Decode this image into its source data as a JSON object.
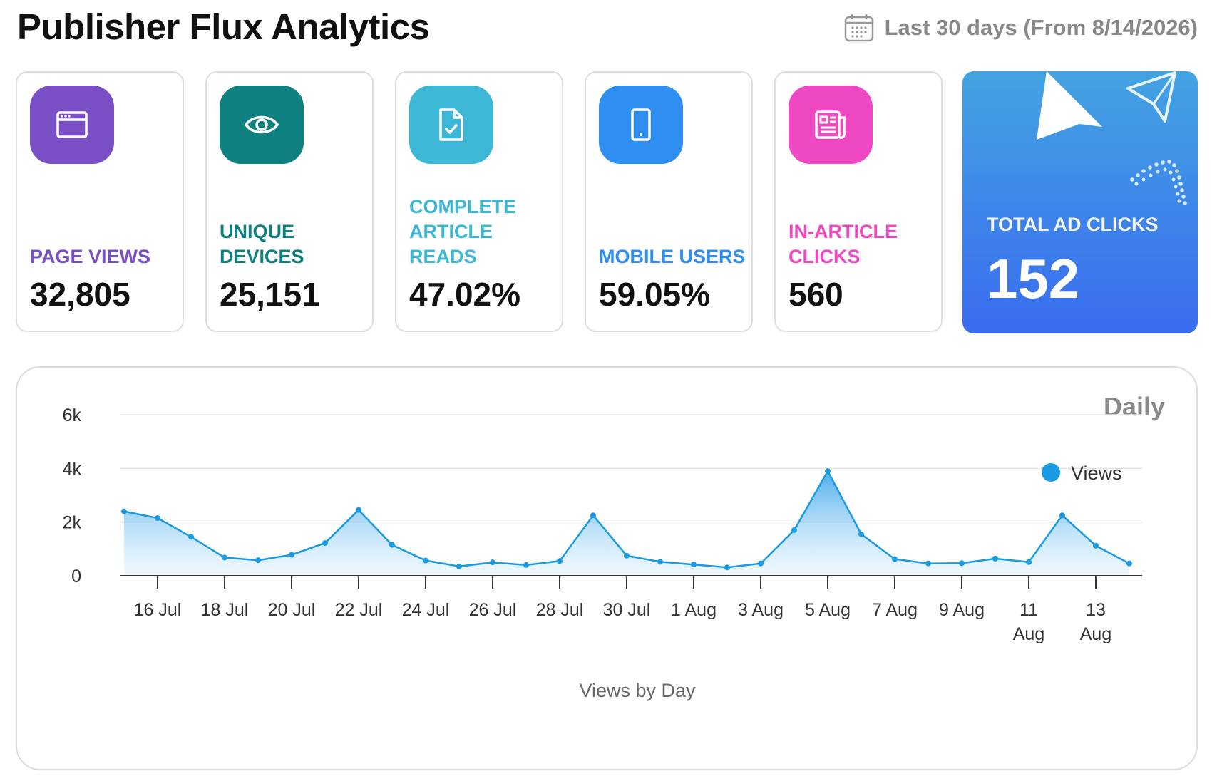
{
  "header": {
    "title": "Publisher Flux Analytics",
    "date_range": "Last 30 days (From 8/14/2026)",
    "calendar_icon": "calendar-icon"
  },
  "cards": [
    {
      "label": "PAGE VIEWS",
      "value": "32,805",
      "color": "#7a4fc6",
      "icon": "browser-window-icon"
    },
    {
      "label": "UNIQUE DEVICES",
      "value": "25,151",
      "color": "#0f8080",
      "icon": "eye-icon"
    },
    {
      "label": "COMPLETE ARTICLE READS",
      "value": "47.02%",
      "color": "#3cb8d6",
      "icon": "document-check-icon"
    },
    {
      "label": "MOBILE USERS",
      "value": "59.05%",
      "color": "#2e8ff0",
      "icon": "mobile-phone-icon"
    },
    {
      "label": "IN-ARTICLE CLICKS",
      "value": "560",
      "color": "#ee48c2",
      "icon": "newspaper-icon"
    }
  ],
  "hero": {
    "label": "TOTAL AD CLICKS",
    "value": "152"
  },
  "chart_panel": {
    "period": "Daily"
  },
  "chart_data": {
    "type": "area",
    "xlabel": "Views by Day",
    "ylabel": "",
    "ylim": [
      0,
      6000
    ],
    "yticks": [
      0,
      2000,
      4000,
      6000
    ],
    "ytick_labels": [
      "0",
      "2k",
      "4k",
      "6k"
    ],
    "grid": true,
    "legend": "top-right",
    "color": "#1a9ae0",
    "x": [
      "15 Jul",
      "16 Jul",
      "17 Jul",
      "18 Jul",
      "19 Jul",
      "20 Jul",
      "21 Jul",
      "22 Jul",
      "23 Jul",
      "24 Jul",
      "25 Jul",
      "26 Jul",
      "27 Jul",
      "28 Jul",
      "29 Jul",
      "30 Jul",
      "31 Jul",
      "1 Aug",
      "2 Aug",
      "3 Aug",
      "4 Aug",
      "5 Aug",
      "6 Aug",
      "7 Aug",
      "8 Aug",
      "9 Aug",
      "10 Aug",
      "11 Aug",
      "12 Aug",
      "13 Aug",
      "14 Aug"
    ],
    "xtick_labels": [
      "16 Jul",
      "18 Jul",
      "20 Jul",
      "22 Jul",
      "24 Jul",
      "26 Jul",
      "28 Jul",
      "30 Jul",
      "1 Aug",
      "3 Aug",
      "5 Aug",
      "7 Aug",
      "9 Aug",
      "11 Aug",
      "13 Aug"
    ],
    "series": [
      {
        "name": "Views",
        "values": [
          2400,
          2150,
          1450,
          680,
          580,
          780,
          1220,
          2450,
          1150,
          570,
          350,
          500,
          400,
          550,
          2250,
          750,
          520,
          420,
          310,
          460,
          1700,
          3900,
          1550,
          620,
          460,
          470,
          640,
          510,
          2250,
          1120,
          460
        ]
      }
    ]
  }
}
